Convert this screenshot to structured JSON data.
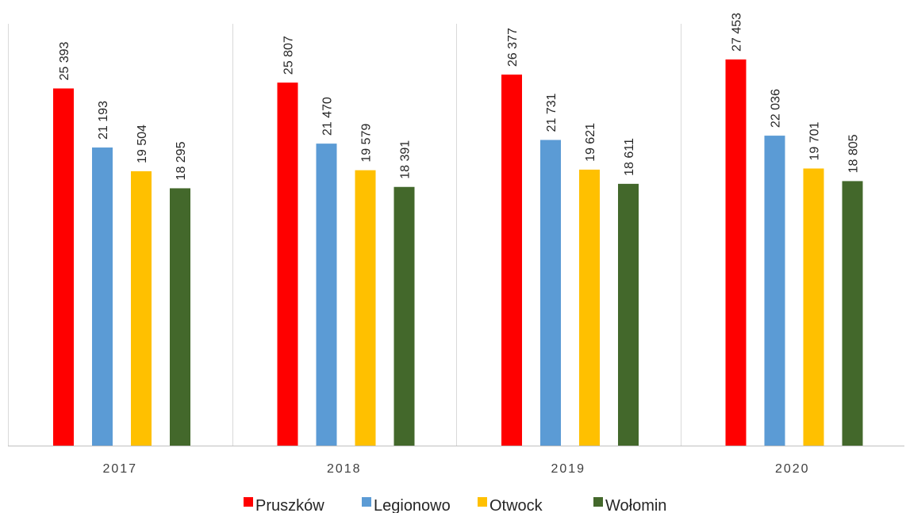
{
  "chart_data": {
    "type": "bar",
    "title": "",
    "xlabel": "",
    "ylabel": "",
    "categories": [
      "2017",
      "2018",
      "2019",
      "2020"
    ],
    "series": [
      {
        "name": "Pruszków",
        "color": "#ff0000",
        "values": [
          25393,
          25807,
          26377,
          27453
        ],
        "labels": [
          "25 393",
          "25 807",
          "26 377",
          "27 453"
        ]
      },
      {
        "name": "Legionowo",
        "color": "#5b9bd5",
        "values": [
          21193,
          21470,
          21731,
          22036
        ],
        "labels": [
          "21 193",
          "21 470",
          "21 731",
          "22 036"
        ]
      },
      {
        "name": "Otwock",
        "color": "#ffc000",
        "values": [
          19504,
          19579,
          19621,
          19701
        ],
        "labels": [
          "19 504",
          "19 579",
          "19 621",
          "19 701"
        ]
      },
      {
        "name": "Wołomin",
        "color": "#43682b",
        "values": [
          18295,
          18391,
          18611,
          18805
        ],
        "labels": [
          "18 295",
          "18 391",
          "18 611",
          "18 805"
        ]
      }
    ],
    "ylim": [
      0,
      30000
    ],
    "grid": false,
    "legend": "bottom",
    "data_labels": "rotated-vertical"
  }
}
